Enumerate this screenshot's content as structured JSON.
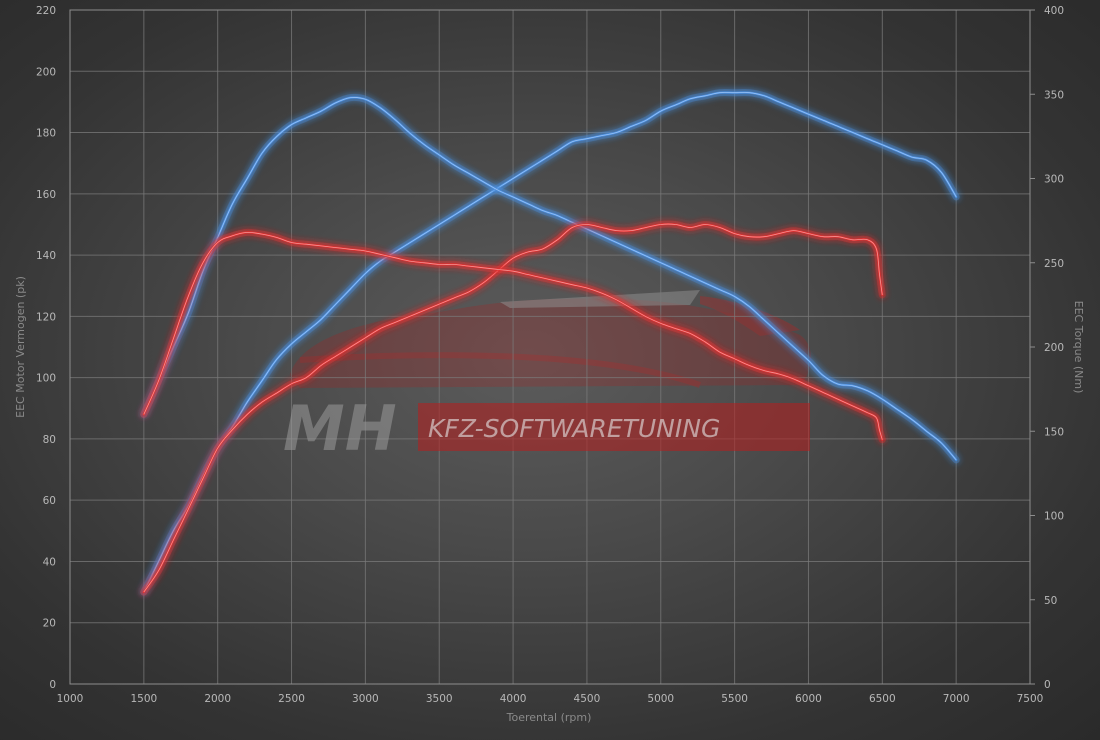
{
  "chart_data": {
    "type": "line",
    "xlabel": "Toerental (rpm)",
    "ylabel_left": "EEC Motor Vermogen (pk)",
    "ylabel_right": "EEC Torque (Nm)",
    "xlim": [
      1000,
      7500
    ],
    "ylim_left": [
      0,
      220
    ],
    "ylim_right": [
      0,
      400
    ],
    "x_ticks": [
      1000,
      1500,
      2000,
      2500,
      3000,
      3500,
      4000,
      4500,
      5000,
      5500,
      6000,
      6500,
      7000,
      7500
    ],
    "y_left_ticks": [
      0,
      20,
      40,
      60,
      80,
      100,
      120,
      140,
      160,
      180,
      200,
      220
    ],
    "y_right_ticks": [
      0,
      50,
      100,
      150,
      200,
      250,
      300,
      350,
      400
    ],
    "grid": true,
    "series": [
      {
        "axis": "left",
        "color": "#4a8fe0",
        "x": [
          1500,
          1600,
          1700,
          1800,
          1900,
          2000,
          2100,
          2200,
          2300,
          2400,
          2500,
          2600,
          2700,
          2800,
          2900,
          3000,
          3100,
          3200,
          3300,
          3400,
          3500,
          3600,
          3700,
          3800,
          3900,
          4000,
          4100,
          4200,
          4300,
          4400,
          4500,
          4600,
          4700,
          4800,
          4900,
          5000,
          5100,
          5200,
          5300,
          5400,
          5500,
          5600,
          5700,
          5800,
          5900,
          6000,
          6100,
          6200,
          6300,
          6400,
          6500,
          6600,
          6700,
          6800,
          6900,
          7000
        ],
        "y": [
          30,
          40,
          50,
          58,
          68,
          77,
          84,
          92,
          99,
          106,
          111,
          115,
          119,
          124,
          129,
          134,
          138,
          141,
          144,
          147,
          150,
          153,
          156,
          159,
          162,
          165,
          168,
          171,
          174,
          177,
          178,
          179,
          180,
          182,
          184,
          187,
          189,
          191,
          192,
          193,
          193,
          193,
          192,
          190,
          188,
          186,
          184,
          182,
          180,
          178,
          176,
          174,
          172,
          171,
          167,
          159
        ]
      },
      {
        "axis": "right",
        "color": "#4a8fe0",
        "x": [
          1500,
          1600,
          1700,
          1800,
          1900,
          2000,
          2100,
          2200,
          2300,
          2400,
          2500,
          2600,
          2700,
          2800,
          2900,
          3000,
          3100,
          3200,
          3300,
          3400,
          3500,
          3600,
          3700,
          3800,
          3900,
          4000,
          4100,
          4200,
          4300,
          4400,
          4500,
          4600,
          4700,
          4800,
          4900,
          5000,
          5100,
          5200,
          5300,
          5400,
          5500,
          5600,
          5700,
          5800,
          5900,
          6000,
          6100,
          6200,
          6300,
          6400,
          6500,
          6600,
          6700,
          6800,
          6900,
          7000
        ],
        "y": [
          160,
          180,
          200,
          220,
          245,
          265,
          285,
          300,
          315,
          325,
          332,
          336,
          340,
          345,
          348,
          347,
          342,
          335,
          327,
          320,
          314,
          308,
          303,
          298,
          293,
          289,
          285,
          281,
          278,
          274,
          270,
          266,
          262,
          258,
          254,
          250,
          246,
          242,
          238,
          234,
          230,
          224,
          216,
          208,
          200,
          192,
          183,
          178,
          177,
          174,
          169,
          163,
          157,
          150,
          143,
          133
        ]
      },
      {
        "axis": "left",
        "color": "#e03030",
        "x": [
          1500,
          1600,
          1700,
          1800,
          1900,
          2000,
          2100,
          2200,
          2300,
          2400,
          2500,
          2600,
          2700,
          2800,
          2900,
          3000,
          3100,
          3200,
          3300,
          3400,
          3500,
          3600,
          3700,
          3800,
          3900,
          4000,
          4100,
          4200,
          4300,
          4400,
          4500,
          4600,
          4700,
          4800,
          4900,
          5000,
          5100,
          5200,
          5300,
          5400,
          5500,
          5600,
          5700,
          5800,
          5900,
          6000,
          6100,
          6200,
          6300,
          6400,
          6460,
          6480,
          6500
        ],
        "y": [
          30,
          37,
          47,
          57,
          67,
          77,
          83,
          88,
          92,
          95,
          98,
          100,
          104,
          107,
          110,
          113,
          116,
          118,
          120,
          122,
          124,
          126,
          128,
          131,
          135,
          139,
          141,
          142,
          145,
          149,
          150,
          149,
          148,
          148,
          149,
          150,
          150,
          149,
          150,
          149,
          147,
          146,
          146,
          147,
          148,
          147,
          146,
          146,
          145,
          145,
          142,
          134,
          127
        ]
      },
      {
        "axis": "right",
        "color": "#e03030",
        "x": [
          1500,
          1600,
          1700,
          1800,
          1900,
          2000,
          2100,
          2200,
          2300,
          2400,
          2500,
          2600,
          2700,
          2800,
          2900,
          3000,
          3100,
          3200,
          3300,
          3400,
          3500,
          3600,
          3700,
          3800,
          3900,
          4000,
          4100,
          4200,
          4300,
          4400,
          4500,
          4600,
          4700,
          4800,
          4900,
          5000,
          5100,
          5200,
          5300,
          5400,
          5500,
          5600,
          5700,
          5800,
          5900,
          6000,
          6100,
          6200,
          6300,
          6400,
          6460,
          6480,
          6500
        ],
        "y": [
          160,
          180,
          205,
          230,
          250,
          262,
          266,
          268,
          267,
          265,
          262,
          261,
          260,
          259,
          258,
          257,
          255,
          253,
          251,
          250,
          249,
          249,
          248,
          247,
          246,
          245,
          243,
          241,
          239,
          237,
          235,
          232,
          228,
          223,
          218,
          214,
          211,
          208,
          203,
          197,
          193,
          189,
          186,
          184,
          181,
          177,
          173,
          169,
          165,
          161,
          158,
          151,
          145
        ]
      }
    ]
  },
  "watermark": {
    "brand": "MH",
    "text": "KFZ-SOFTWARETUNING"
  }
}
